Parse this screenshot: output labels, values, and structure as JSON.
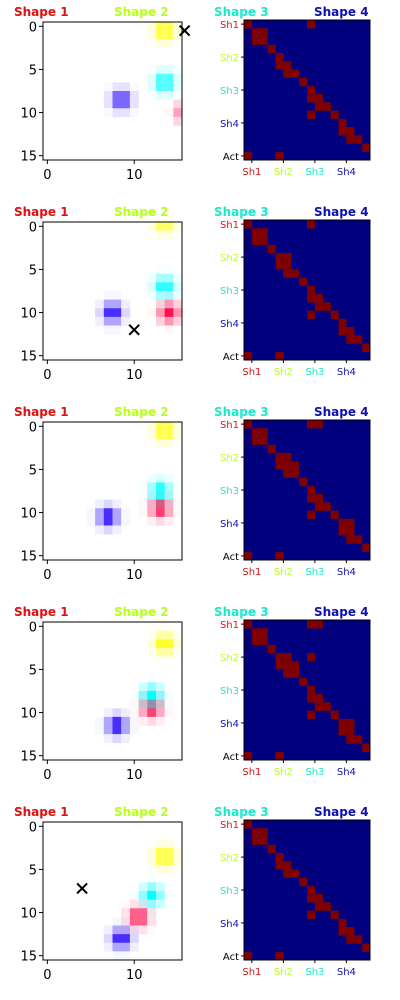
{
  "chart_data": {
    "type": "heatmap",
    "legend_labels": [
      {
        "text": "Shape 1",
        "color": "#e01010"
      },
      {
        "text": "Shape 2",
        "color": "#b8ff1a"
      },
      {
        "text": "Shape 3",
        "color": "#1ee8c8"
      },
      {
        "text": "Shape 4",
        "color": "#1010b0"
      }
    ],
    "shape_colors": [
      "#ff1050",
      "#ffff00",
      "#00ffff",
      "#2000ff"
    ],
    "grid_panel": {
      "xlim": [
        -0.5,
        15.5
      ],
      "ylim": [
        15.5,
        -0.5
      ],
      "x_ticks": [
        0,
        10
      ],
      "y_ticks": [
        0,
        5,
        10,
        15
      ]
    },
    "matrix_panel": {
      "rows": 17,
      "cols": 16,
      "y_tick_labels": [
        {
          "text": "Sh1",
          "row": 0,
          "color": "#e01010"
        },
        {
          "text": "Sh2",
          "row": 4,
          "color": "#b8ff1a"
        },
        {
          "text": "Sh3",
          "row": 8,
          "color": "#1ee8c8"
        },
        {
          "text": "Sh4",
          "row": 12,
          "color": "#1010b0"
        },
        {
          "text": "Act",
          "row": 16,
          "color": "#000000"
        }
      ],
      "x_tick_labels": [
        {
          "text": "Sh1",
          "col": 0.5,
          "color": "#e01010"
        },
        {
          "text": "Sh2",
          "col": 4.5,
          "color": "#b8ff1a"
        },
        {
          "text": "Sh3",
          "col": 8.5,
          "color": "#1ee8c8"
        },
        {
          "text": "Sh4",
          "col": 12.5,
          "color": "#1010b0"
        }
      ],
      "background_color": "#00007f",
      "active_color": "#7f0000"
    },
    "frames": [
      {
        "shapes": [
          {
            "shape": 1,
            "x": 16,
            "y": 10,
            "strength": 0.9
          },
          {
            "shape": 2,
            "x": 13.5,
            "y": 0.5,
            "strength": 1.0
          },
          {
            "shape": 3,
            "x": 13.5,
            "y": 6.5,
            "strength": 1.0
          },
          {
            "shape": 4,
            "x": 8.5,
            "y": 8.5,
            "strength": 0.9
          }
        ],
        "marker": {
          "x": 15.8,
          "y": 0.5
        },
        "matrix_cells": [
          [
            0,
            0
          ],
          [
            1,
            1
          ],
          [
            2,
            1
          ],
          [
            1,
            2
          ],
          [
            2,
            2
          ],
          [
            3,
            3
          ],
          [
            4,
            4
          ],
          [
            5,
            4
          ],
          [
            5,
            5
          ],
          [
            6,
            5
          ],
          [
            6,
            6
          ],
          [
            7,
            7
          ],
          [
            8,
            8
          ],
          [
            9,
            8
          ],
          [
            9,
            9
          ],
          [
            10,
            9
          ],
          [
            10,
            10
          ],
          [
            11,
            11
          ],
          [
            12,
            12
          ],
          [
            13,
            12
          ],
          [
            13,
            13
          ],
          [
            14,
            13
          ],
          [
            14,
            14
          ],
          [
            15,
            15
          ],
          [
            11,
            8
          ],
          [
            0,
            8
          ],
          [
            16,
            0
          ],
          [
            16,
            4
          ]
        ]
      },
      {
        "shapes": [
          {
            "shape": 1,
            "x": 14,
            "y": 10,
            "strength": 1.0
          },
          {
            "shape": 2,
            "x": 13.5,
            "y": -0.5,
            "strength": 0.9
          },
          {
            "shape": 3,
            "x": 13.5,
            "y": 7,
            "strength": 1.0
          },
          {
            "shape": 4,
            "x": 7.5,
            "y": 10,
            "strength": 1.0
          }
        ],
        "marker": {
          "x": 10,
          "y": 12
        },
        "matrix_cells": [
          [
            0,
            0
          ],
          [
            1,
            1
          ],
          [
            2,
            1
          ],
          [
            1,
            2
          ],
          [
            2,
            2
          ],
          [
            3,
            3
          ],
          [
            4,
            4
          ],
          [
            5,
            4
          ],
          [
            4,
            5
          ],
          [
            5,
            5
          ],
          [
            6,
            5
          ],
          [
            6,
            6
          ],
          [
            7,
            7
          ],
          [
            8,
            8
          ],
          [
            9,
            8
          ],
          [
            9,
            9
          ],
          [
            10,
            9
          ],
          [
            10,
            10
          ],
          [
            11,
            11
          ],
          [
            12,
            12
          ],
          [
            13,
            12
          ],
          [
            13,
            13
          ],
          [
            14,
            13
          ],
          [
            14,
            14
          ],
          [
            15,
            15
          ],
          [
            11,
            8
          ],
          [
            0,
            8
          ],
          [
            16,
            0
          ],
          [
            16,
            4
          ]
        ]
      },
      {
        "shapes": [
          {
            "shape": 1,
            "x": 13,
            "y": 9.5,
            "strength": 1.0
          },
          {
            "shape": 2,
            "x": 13.5,
            "y": 0.5,
            "strength": 1.0
          },
          {
            "shape": 3,
            "x": 13,
            "y": 7.5,
            "strength": 1.0
          },
          {
            "shape": 4,
            "x": 7,
            "y": 10.5,
            "strength": 1.0
          }
        ],
        "marker": null,
        "matrix_cells": [
          [
            0,
            0
          ],
          [
            1,
            1
          ],
          [
            2,
            1
          ],
          [
            1,
            2
          ],
          [
            2,
            2
          ],
          [
            3,
            3
          ],
          [
            4,
            4
          ],
          [
            5,
            4
          ],
          [
            4,
            5
          ],
          [
            5,
            5
          ],
          [
            6,
            5
          ],
          [
            5,
            6
          ],
          [
            6,
            6
          ],
          [
            7,
            7
          ],
          [
            8,
            8
          ],
          [
            9,
            8
          ],
          [
            9,
            9
          ],
          [
            10,
            9
          ],
          [
            10,
            10
          ],
          [
            11,
            11
          ],
          [
            12,
            12
          ],
          [
            13,
            12
          ],
          [
            12,
            13
          ],
          [
            13,
            13
          ],
          [
            14,
            13
          ],
          [
            14,
            14
          ],
          [
            15,
            15
          ],
          [
            11,
            8
          ],
          [
            10,
            9
          ],
          [
            0,
            8
          ],
          [
            0,
            9
          ],
          [
            16,
            0
          ],
          [
            16,
            4
          ]
        ]
      },
      {
        "shapes": [
          {
            "shape": 1,
            "x": 12,
            "y": 9.5,
            "strength": 1.0
          },
          {
            "shape": 2,
            "x": 13.5,
            "y": 2,
            "strength": 1.0
          },
          {
            "shape": 3,
            "x": 12,
            "y": 8,
            "strength": 1.0
          },
          {
            "shape": 4,
            "x": 8,
            "y": 11.5,
            "strength": 1.0
          }
        ],
        "marker": null,
        "matrix_cells": [
          [
            0,
            0
          ],
          [
            1,
            1
          ],
          [
            2,
            1
          ],
          [
            1,
            2
          ],
          [
            2,
            2
          ],
          [
            3,
            3
          ],
          [
            4,
            4
          ],
          [
            5,
            4
          ],
          [
            4,
            5
          ],
          [
            5,
            5
          ],
          [
            6,
            5
          ],
          [
            5,
            6
          ],
          [
            6,
            6
          ],
          [
            7,
            7
          ],
          [
            8,
            8
          ],
          [
            9,
            8
          ],
          [
            9,
            9
          ],
          [
            10,
            9
          ],
          [
            10,
            10
          ],
          [
            11,
            11
          ],
          [
            12,
            12
          ],
          [
            13,
            12
          ],
          [
            12,
            13
          ],
          [
            13,
            13
          ],
          [
            14,
            13
          ],
          [
            14,
            14
          ],
          [
            15,
            15
          ],
          [
            11,
            8
          ],
          [
            10,
            9
          ],
          [
            0,
            8
          ],
          [
            0,
            9
          ],
          [
            4,
            8
          ],
          [
            16,
            0
          ],
          [
            16,
            4
          ]
        ]
      },
      {
        "shapes": [
          {
            "shape": 1,
            "x": 10.5,
            "y": 10.5,
            "strength": 1.0
          },
          {
            "shape": 2,
            "x": 13.5,
            "y": 3.5,
            "strength": 1.0
          },
          {
            "shape": 3,
            "x": 12,
            "y": 8,
            "strength": 1.0
          },
          {
            "shape": 4,
            "x": 8.5,
            "y": 13,
            "strength": 1.0
          }
        ],
        "marker": {
          "x": 4,
          "y": 7.2
        },
        "matrix_cells": [
          [
            0,
            0
          ],
          [
            1,
            1
          ],
          [
            2,
            1
          ],
          [
            1,
            2
          ],
          [
            2,
            2
          ],
          [
            3,
            3
          ],
          [
            4,
            4
          ],
          [
            5,
            4
          ],
          [
            5,
            5
          ],
          [
            6,
            5
          ],
          [
            6,
            6
          ],
          [
            7,
            7
          ],
          [
            8,
            8
          ],
          [
            9,
            8
          ],
          [
            9,
            9
          ],
          [
            10,
            9
          ],
          [
            10,
            10
          ],
          [
            11,
            11
          ],
          [
            12,
            12
          ],
          [
            13,
            12
          ],
          [
            13,
            13
          ],
          [
            14,
            13
          ],
          [
            14,
            14
          ],
          [
            15,
            15
          ],
          [
            11,
            8
          ],
          [
            16,
            0
          ],
          [
            16,
            4
          ]
        ]
      }
    ]
  }
}
